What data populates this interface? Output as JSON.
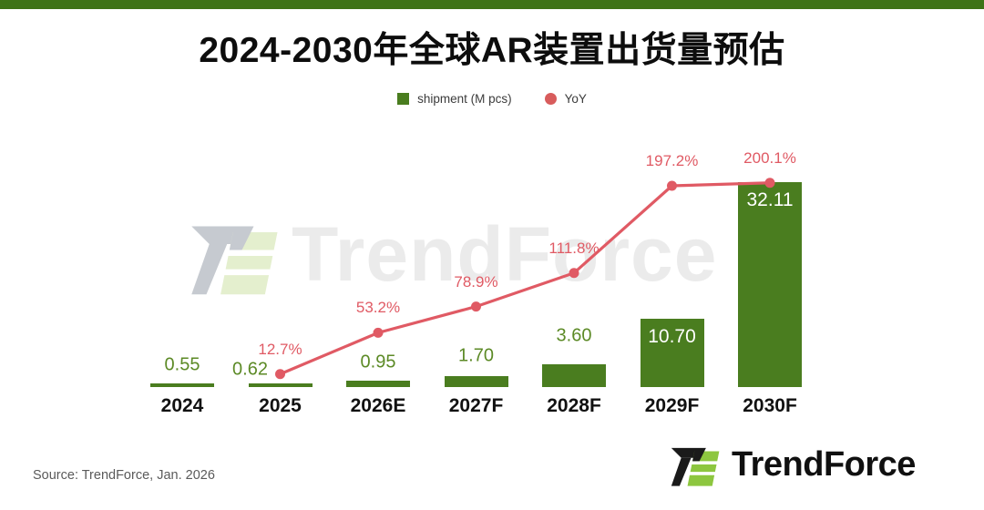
{
  "page": {
    "title": "2024-2030年全球AR装置出货量预估",
    "source_note": "Source: TrendForce, Jan. 2026",
    "accent_green": "#4a7d1f",
    "accent_red": "#e05a64",
    "top_bar_color": "#3e7317"
  },
  "legend": {
    "items": [
      {
        "label": "shipment (M pcs)",
        "swatch": "square",
        "color": "#4a7d1f"
      },
      {
        "label": "YoY",
        "swatch": "dot",
        "color": "#d85c5c"
      }
    ]
  },
  "watermark": {
    "text": "TrendForce",
    "logo": "trendforce-mark"
  },
  "footer_logo": {
    "text": "TrendForce"
  },
  "chart_data": {
    "type": "combo",
    "title": "2024-2030年全球AR装置出货量预估",
    "categories": [
      "2024",
      "2025",
      "2026E",
      "2027F",
      "2028F",
      "2029F",
      "2030F"
    ],
    "series": [
      {
        "name": "shipment (M pcs)",
        "type": "bar",
        "unit": "M pcs",
        "values": [
          0.55,
          0.62,
          0.95,
          1.7,
          3.6,
          10.7,
          32.11
        ],
        "color": "#4a7d1f"
      },
      {
        "name": "YoY",
        "type": "line",
        "unit": "%",
        "values": [
          null,
          12.7,
          53.2,
          78.9,
          111.8,
          197.2,
          200.1
        ],
        "color": "#e05a64"
      }
    ],
    "bar_labels": [
      "0.55",
      "0.62",
      "0.95",
      "1.70",
      "3.60",
      "10.70",
      "32.11"
    ],
    "yoy_labels": [
      null,
      "12.7%",
      "53.2%",
      "78.9%",
      "111.8%",
      "197.2%",
      "200.1%"
    ],
    "xlabel": "",
    "ylabel": "",
    "bar_ylim": [
      0,
      33
    ],
    "line_ylim": [
      0,
      210
    ],
    "grid": false,
    "legend_position": "top"
  }
}
